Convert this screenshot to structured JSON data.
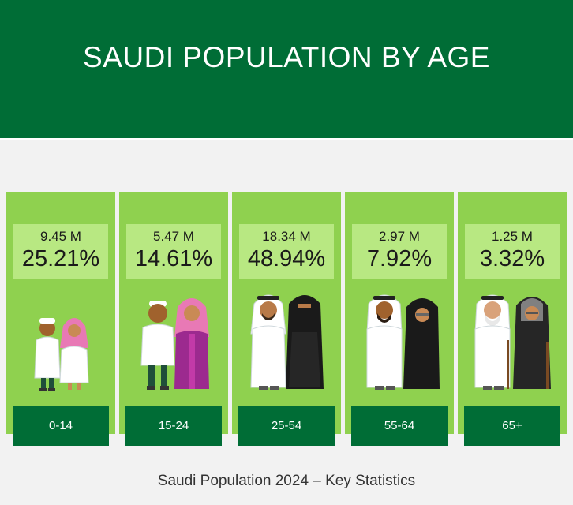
{
  "title": "SAUDI POPULATION BY AGE",
  "caption": "Saudi Population 2024 – Key Statistics",
  "colors": {
    "header": "#006d36",
    "column": "#8fd14f",
    "stat_box": "#b8e882",
    "label": "#006d36"
  },
  "groups": [
    {
      "age": "0-14",
      "count": "9.45 M",
      "percent": "25.21%",
      "figures": "children-icon"
    },
    {
      "age": "15-24",
      "count": "5.47 M",
      "percent": "14.61%",
      "figures": "youth-couple-icon"
    },
    {
      "age": "25-54",
      "count": "18.34 M",
      "percent": "48.94%",
      "figures": "adult-couple-icon"
    },
    {
      "age": "55-64",
      "count": "2.97 M",
      "percent": "7.92%",
      "figures": "middle-aged-couple-icon"
    },
    {
      "age": "65+",
      "count": "1.25 M",
      "percent": "3.32%",
      "figures": "elderly-couple-icon"
    }
  ]
}
